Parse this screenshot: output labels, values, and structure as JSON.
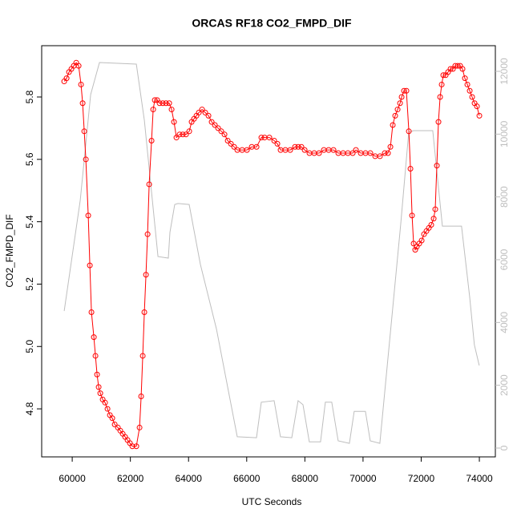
{
  "chart_data": {
    "type": "line",
    "title": "ORCAS RF18 CO2_FMPD_DIF",
    "x_label": "UTC Seconds",
    "y_label": "CO2_FMPD_DIF",
    "xlim": [
      58950,
      74550
    ],
    "xticks": [
      60000,
      62000,
      64000,
      66000,
      68000,
      70000,
      72000,
      74000
    ],
    "ylim": [
      4.646,
      5.9645
    ],
    "yticks": [
      4.8,
      {
        "value": 5,
        "label": "5.0"
      },
      5.2,
      5.4,
      5.6,
      5.8
    ],
    "y2lim": [
      -281,
      12817
    ],
    "y2ticks": [
      0,
      2000,
      4000,
      6000,
      8000,
      10000,
      12000
    ],
    "series": [
      {
        "color": "#bebebe",
        "axis": "y2",
        "x": [
          59724,
          60275,
          60634,
          60937,
          62204,
          62480,
          62755,
          62948,
          63306,
          63361,
          63526,
          63636,
          64022,
          64408,
          64959,
          65675,
          66336,
          66501,
          66942,
          67162,
          67548,
          67768,
          67934,
          68154,
          68540,
          68705,
          68926,
          69146,
          69532,
          69697,
          70083,
          70248,
          70579,
          70744,
          71295,
          71570,
          71735,
          72397,
          72727,
          73388,
          73664,
          73829,
          73995
        ],
        "values": [
          4366,
          7890,
          11260,
          12280,
          12230,
          10440,
          7890,
          6100,
          6050,
          6870,
          7760,
          7790,
          7760,
          5850,
          3800,
          360,
          330,
          1460,
          1510,
          360,
          330,
          1510,
          1380,
          200,
          200,
          1460,
          1460,
          230,
          150,
          1170,
          1170,
          230,
          150,
          1760,
          7120,
          10060,
          10110,
          10110,
          7070,
          7070,
          4830,
          3290,
          2630
        ]
      },
      {
        "color": "#ff0000",
        "x": [
          59724,
          59807,
          59890,
          59972,
          60055,
          60138,
          60220,
          60303,
          60358,
          60413,
          60469,
          60551,
          60606,
          60661,
          60744,
          60799,
          60854,
          60909,
          60965,
          61047,
          61130,
          61213,
          61295,
          61378,
          61461,
          61571,
          61654,
          61736,
          61819,
          61902,
          61984,
          62067,
          62205,
          62315,
          62370,
          62425,
          62480,
          62536,
          62591,
          62646,
          62728,
          62784,
          62839,
          62921,
          63004,
          63114,
          63224,
          63335,
          63417,
          63500,
          63583,
          63693,
          63803,
          63913,
          64024,
          64106,
          64189,
          64272,
          64354,
          64465,
          64575,
          64685,
          64795,
          64906,
          65016,
          65126,
          65236,
          65347,
          65457,
          65567,
          65677,
          65843,
          66008,
          66173,
          66339,
          66504,
          66614,
          66779,
          66945,
          67055,
          67165,
          67330,
          67496,
          67661,
          67771,
          67881,
          67992,
          68157,
          68322,
          68488,
          68653,
          68818,
          68984,
          69149,
          69315,
          69480,
          69645,
          69756,
          69921,
          70086,
          70252,
          70417,
          70583,
          70748,
          70858,
          70941,
          71023,
          71106,
          71189,
          71272,
          71327,
          71409,
          71492,
          71575,
          71630,
          71685,
          71740,
          71795,
          71850,
          71933,
          72016,
          72098,
          72181,
          72264,
          72346,
          72429,
          72484,
          72539,
          72594,
          72650,
          72705,
          72760,
          72842,
          72925,
          73008,
          73091,
          73173,
          73256,
          73339,
          73421,
          73504,
          73587,
          73669,
          73752,
          73835,
          73917,
          74000
        ],
        "values": [
          5.85,
          5.86,
          5.88,
          5.89,
          5.9,
          5.91,
          5.9,
          5.84,
          5.78,
          5.69,
          5.6,
          5.42,
          5.26,
          5.11,
          5.03,
          4.97,
          4.91,
          4.87,
          4.85,
          4.83,
          4.82,
          4.8,
          4.78,
          4.77,
          4.75,
          4.74,
          4.73,
          4.72,
          4.71,
          4.7,
          4.69,
          4.68,
          4.68,
          4.74,
          4.84,
          4.97,
          5.11,
          5.23,
          5.36,
          5.52,
          5.66,
          5.76,
          5.79,
          5.79,
          5.78,
          5.78,
          5.78,
          5.78,
          5.76,
          5.72,
          5.67,
          5.68,
          5.68,
          5.68,
          5.69,
          5.72,
          5.73,
          5.74,
          5.75,
          5.76,
          5.75,
          5.74,
          5.72,
          5.71,
          5.7,
          5.69,
          5.68,
          5.66,
          5.65,
          5.64,
          5.63,
          5.63,
          5.63,
          5.64,
          5.64,
          5.67,
          5.67,
          5.67,
          5.66,
          5.65,
          5.63,
          5.63,
          5.63,
          5.64,
          5.64,
          5.64,
          5.63,
          5.62,
          5.62,
          5.62,
          5.63,
          5.63,
          5.63,
          5.62,
          5.62,
          5.62,
          5.62,
          5.63,
          5.62,
          5.62,
          5.62,
          5.61,
          5.61,
          5.62,
          5.62,
          5.64,
          5.71,
          5.74,
          5.76,
          5.78,
          5.8,
          5.82,
          5.82,
          5.69,
          5.57,
          5.42,
          5.33,
          5.31,
          5.32,
          5.33,
          5.34,
          5.36,
          5.37,
          5.38,
          5.39,
          5.41,
          5.44,
          5.58,
          5.72,
          5.8,
          5.84,
          5.87,
          5.87,
          5.88,
          5.89,
          5.89,
          5.9,
          5.9,
          5.9,
          5.89,
          5.86,
          5.84,
          5.82,
          5.8,
          5.78,
          5.77,
          5.74
        ]
      }
    ]
  }
}
